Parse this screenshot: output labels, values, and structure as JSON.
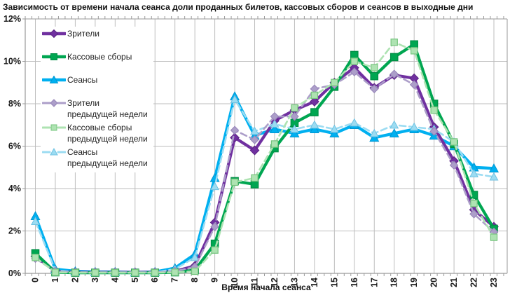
{
  "title": "Зависимость от времени начала сеанса доли проданных билетов, кассовых сборов и сеансов в выходные дни",
  "colors": {
    "grid": "#bdbdbd",
    "frame": "#9a9a9a",
    "text": "#1a1a1a",
    "viewers": "#7030A0",
    "box_office": "#00A651",
    "sessions": "#00B0F0",
    "viewers_prev": "#AC9EC9",
    "box_office_prev": "#AEE3B2",
    "sessions_prev": "#9CDCF2"
  },
  "chart_data": {
    "type": "line",
    "x": [
      0,
      1,
      2,
      3,
      4,
      5,
      6,
      7,
      8,
      9,
      10,
      11,
      12,
      13,
      14,
      15,
      16,
      17,
      18,
      19,
      20,
      21,
      22,
      23
    ],
    "xlabel": "Время начала сеанса",
    "ylabel": "",
    "ylim": [
      0,
      12
    ],
    "ytick_step": 2,
    "ytick_labels": [
      "0%",
      "2%",
      "4%",
      "6%",
      "8%",
      "10%",
      "12%"
    ],
    "grid": true,
    "legend_position": "top-left-inside",
    "series": [
      {
        "id": "viewers",
        "name": "Зрители",
        "name_line2": "",
        "color": "#7030A0",
        "marker": "diamond",
        "marker_stroke": "#5B2383",
        "dash": false,
        "values": [
          0.8,
          0.1,
          0.05,
          0.05,
          0.05,
          0.05,
          0.05,
          0.1,
          0.35,
          2.4,
          6.4,
          5.8,
          7.2,
          7.7,
          8.1,
          9.0,
          9.7,
          8.75,
          9.35,
          9.2,
          6.9,
          5.3,
          3.0,
          2.2
        ]
      },
      {
        "id": "box-office",
        "name": "Кассовые сборы",
        "name_line2": "",
        "color": "#00A651",
        "marker": "square",
        "marker_stroke": "#008C44",
        "dash": false,
        "values": [
          0.95,
          0.05,
          0.03,
          0.03,
          0.03,
          0.03,
          0.03,
          0.05,
          0.15,
          1.4,
          4.35,
          4.2,
          5.9,
          7.1,
          7.6,
          8.8,
          10.3,
          9.3,
          10.2,
          10.8,
          8.0,
          6.1,
          3.7,
          2.1
        ]
      },
      {
        "id": "sessions",
        "name": "Сеансы",
        "name_line2": "",
        "color": "#00B0F0",
        "marker": "triangle",
        "marker_stroke": "#0095D0",
        "dash": false,
        "values": [
          2.7,
          0.2,
          0.1,
          0.07,
          0.07,
          0.05,
          0.07,
          0.25,
          0.9,
          4.5,
          8.35,
          6.5,
          6.8,
          6.6,
          6.8,
          6.6,
          7.0,
          6.4,
          6.6,
          6.8,
          6.5,
          6.0,
          5.0,
          4.95
        ]
      },
      {
        "id": "viewers-prev-week",
        "name": "Зрители",
        "name_line2": "предыдущей недели",
        "color": "#AC9EC9",
        "marker": "diamond",
        "marker_stroke": "#9684B8",
        "dash": true,
        "values": [
          0.7,
          0.1,
          0.05,
          0.05,
          0.05,
          0.05,
          0.05,
          0.1,
          0.3,
          2.2,
          6.75,
          6.3,
          7.4,
          7.4,
          8.7,
          8.9,
          9.5,
          8.7,
          9.4,
          8.9,
          6.7,
          5.1,
          2.8,
          1.95
        ]
      },
      {
        "id": "box-office-prev-week",
        "name": "Кассовые сборы",
        "name_line2": "предыдущей недели",
        "color": "#AEE3B2",
        "marker": "square",
        "marker_stroke": "#76C47E",
        "dash": true,
        "values": [
          0.75,
          0.05,
          0.03,
          0.03,
          0.03,
          0.03,
          0.03,
          0.05,
          0.1,
          1.1,
          4.3,
          4.5,
          6.1,
          7.8,
          8.4,
          9.0,
          10.0,
          9.7,
          10.9,
          10.5,
          7.7,
          6.2,
          3.3,
          1.7
        ]
      },
      {
        "id": "sessions-prev-week",
        "name": "Сеансы",
        "name_line2": "предыдущей недели",
        "color": "#9CDCF2",
        "marker": "triangle",
        "marker_stroke": "#6FC2E2",
        "dash": true,
        "values": [
          2.45,
          0.15,
          0.05,
          0.05,
          0.05,
          0.05,
          0.05,
          0.2,
          0.75,
          4.1,
          8.2,
          6.7,
          7.05,
          6.8,
          7.0,
          6.8,
          7.1,
          6.6,
          7.0,
          6.9,
          6.8,
          6.2,
          4.7,
          4.55
        ]
      }
    ],
    "plot_order": [
      2,
      0,
      1,
      5,
      3,
      4
    ]
  }
}
